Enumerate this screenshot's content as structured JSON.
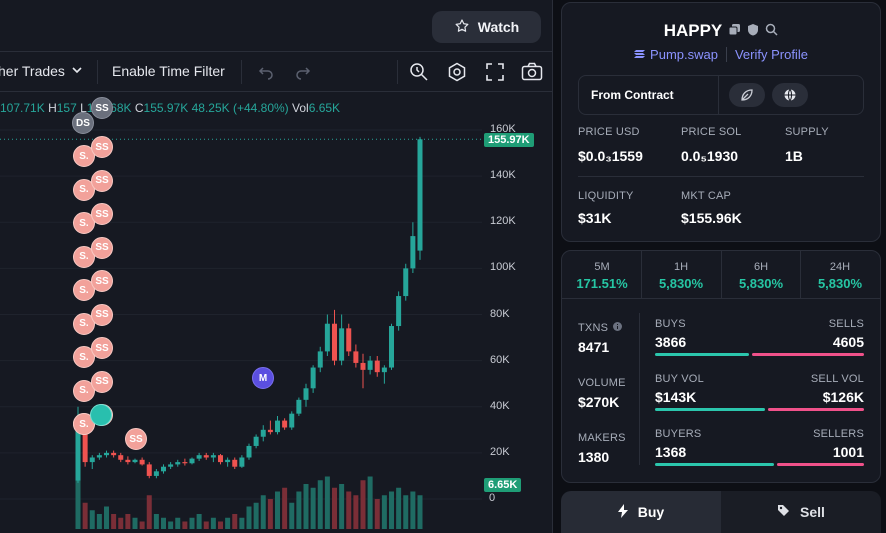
{
  "chart_panel": {
    "watch_label": "Watch",
    "toolbar": {
      "trades_label": "her Trades",
      "time_filter_label": "Enable Time Filter"
    },
    "ohlc": {
      "o_val": "107.71K",
      "h_key": "H",
      "h_val": "157",
      "l_key": "L",
      "l_val": "103.68K",
      "c_key": "C",
      "c_val": "155.97K",
      "change": "48.25K (+44.80%)",
      "vol_key": "Vol",
      "vol_val": "6.65K"
    },
    "last_price_tag": "155.97K",
    "volume_tag": "6.65K",
    "markers": {
      "dev_sell": "SS",
      "dev_short": "S.",
      "dev_buy": "DS",
      "migration": "M"
    }
  },
  "chart_data": {
    "type": "candlestick",
    "y_ticks": [
      "160K",
      "140K",
      "120K",
      "100K",
      "80K",
      "60K",
      "40K",
      "20K",
      "0"
    ],
    "ylim": [
      0,
      160000
    ],
    "candles": [
      {
        "o": 8000,
        "h": 40000,
        "l": 7000,
        "c": 30000
      },
      {
        "o": 30000,
        "h": 32000,
        "l": 14000,
        "c": 16000
      },
      {
        "o": 16000,
        "h": 19000,
        "l": 13000,
        "c": 18000
      },
      {
        "o": 18000,
        "h": 20000,
        "l": 17000,
        "c": 19000
      },
      {
        "o": 19000,
        "h": 21000,
        "l": 18000,
        "c": 20000
      },
      {
        "o": 20000,
        "h": 21000,
        "l": 18000,
        "c": 19000
      },
      {
        "o": 19000,
        "h": 20000,
        "l": 16000,
        "c": 17000
      },
      {
        "o": 17000,
        "h": 18500,
        "l": 15000,
        "c": 16000
      },
      {
        "o": 16000,
        "h": 17500,
        "l": 15500,
        "c": 17000
      },
      {
        "o": 17000,
        "h": 18000,
        "l": 14500,
        "c": 15000
      },
      {
        "o": 15000,
        "h": 16000,
        "l": 9000,
        "c": 10000
      },
      {
        "o": 10000,
        "h": 13000,
        "l": 9000,
        "c": 12000
      },
      {
        "o": 12000,
        "h": 15000,
        "l": 11000,
        "c": 14000
      },
      {
        "o": 14000,
        "h": 16000,
        "l": 13000,
        "c": 15000
      },
      {
        "o": 15000,
        "h": 17000,
        "l": 14000,
        "c": 16000
      },
      {
        "o": 16000,
        "h": 17500,
        "l": 14500,
        "c": 15500
      },
      {
        "o": 15500,
        "h": 18000,
        "l": 15000,
        "c": 17500
      },
      {
        "o": 17500,
        "h": 20000,
        "l": 16500,
        "c": 19000
      },
      {
        "o": 19000,
        "h": 20000,
        "l": 17000,
        "c": 18000
      },
      {
        "o": 18000,
        "h": 20000,
        "l": 16000,
        "c": 19000
      },
      {
        "o": 19000,
        "h": 19500,
        "l": 15000,
        "c": 16000
      },
      {
        "o": 16000,
        "h": 18000,
        "l": 14000,
        "c": 17000
      },
      {
        "o": 17000,
        "h": 18000,
        "l": 13000,
        "c": 14000
      },
      {
        "o": 14000,
        "h": 19000,
        "l": 13500,
        "c": 18000
      },
      {
        "o": 18000,
        "h": 24000,
        "l": 17000,
        "c": 23000
      },
      {
        "o": 23000,
        "h": 28000,
        "l": 22000,
        "c": 27000
      },
      {
        "o": 27000,
        "h": 32000,
        "l": 25000,
        "c": 30000
      },
      {
        "o": 30000,
        "h": 34000,
        "l": 28000,
        "c": 29000
      },
      {
        "o": 29000,
        "h": 36000,
        "l": 28000,
        "c": 34000
      },
      {
        "o": 34000,
        "h": 35000,
        "l": 30000,
        "c": 31000
      },
      {
        "o": 31000,
        "h": 38000,
        "l": 30000,
        "c": 37000
      },
      {
        "o": 37000,
        "h": 44000,
        "l": 36000,
        "c": 43000
      },
      {
        "o": 43000,
        "h": 50000,
        "l": 40000,
        "c": 48000
      },
      {
        "o": 48000,
        "h": 58000,
        "l": 46000,
        "c": 57000
      },
      {
        "o": 57000,
        "h": 66000,
        "l": 55000,
        "c": 64000
      },
      {
        "o": 64000,
        "h": 80000,
        "l": 62000,
        "c": 76000
      },
      {
        "o": 76000,
        "h": 82000,
        "l": 58000,
        "c": 60000
      },
      {
        "o": 60000,
        "h": 80000,
        "l": 58000,
        "c": 74000
      },
      {
        "o": 74000,
        "h": 76000,
        "l": 62000,
        "c": 64000
      },
      {
        "o": 64000,
        "h": 67000,
        "l": 57000,
        "c": 59000
      },
      {
        "o": 59000,
        "h": 63000,
        "l": 48000,
        "c": 56000
      },
      {
        "o": 56000,
        "h": 62000,
        "l": 54000,
        "c": 60000
      },
      {
        "o": 60000,
        "h": 62000,
        "l": 53000,
        "c": 55000
      },
      {
        "o": 55000,
        "h": 58000,
        "l": 50000,
        "c": 57000
      },
      {
        "o": 57000,
        "h": 76000,
        "l": 56000,
        "c": 75000
      },
      {
        "o": 75000,
        "h": 90000,
        "l": 73000,
        "c": 88000
      },
      {
        "o": 88000,
        "h": 102000,
        "l": 86000,
        "c": 100000
      },
      {
        "o": 100000,
        "h": 120000,
        "l": 98000,
        "c": 114000
      },
      {
        "o": 107710,
        "h": 157000,
        "l": 103680,
        "c": 155970
      }
    ],
    "volume_relative": [
      0.95,
      0.35,
      0.25,
      0.2,
      0.3,
      0.2,
      0.15,
      0.2,
      0.15,
      0.1,
      0.45,
      0.2,
      0.15,
      0.1,
      0.15,
      0.1,
      0.15,
      0.2,
      0.1,
      0.15,
      0.1,
      0.15,
      0.2,
      0.15,
      0.3,
      0.35,
      0.45,
      0.4,
      0.5,
      0.55,
      0.35,
      0.5,
      0.6,
      0.55,
      0.65,
      0.7,
      0.55,
      0.6,
      0.5,
      0.45,
      0.65,
      0.7,
      0.4,
      0.45,
      0.5,
      0.55,
      0.45,
      0.5,
      0.45
    ]
  },
  "token": {
    "name": "HAPPY",
    "source": "Pump.swap",
    "verify_label": "Verify Profile",
    "from_contract_label": "From Contract",
    "stats": [
      {
        "label": "PRICE USD",
        "value": "$0.0₃1559"
      },
      {
        "label": "PRICE SOL",
        "value": "0.0₅1930"
      },
      {
        "label": "SUPPLY",
        "value": "1B"
      },
      {
        "label": "LIQUIDITY",
        "value": "$31K"
      },
      {
        "label": "MKT CAP",
        "value": "$155.96K"
      }
    ]
  },
  "timeframes": [
    {
      "label": "5M",
      "value": "171.51%"
    },
    {
      "label": "1H",
      "value": "5,830%"
    },
    {
      "label": "6H",
      "value": "5,830%"
    },
    {
      "label": "24H",
      "value": "5,830%"
    }
  ],
  "activity": {
    "txns_label": "TXNS",
    "txns_value": "8471",
    "volume_label": "VOLUME",
    "volume_value": "$270K",
    "makers_label": "MAKERS",
    "makers_value": "1380",
    "buys_label": "BUYS",
    "buys_value": "3866",
    "sells_label": "SELLS",
    "sells_value": "4605",
    "buy_vol_label": "BUY VOL",
    "buy_vol_value": "$143K",
    "sell_vol_label": "SELL VOL",
    "sell_vol_value": "$126K",
    "buyers_label": "BUYERS",
    "buyers_value": "1368",
    "sellers_label": "SELLERS",
    "sellers_value": "1001",
    "buy_share_txns": 0.456,
    "buy_share_vol": 0.532,
    "buy_share_buyers": 0.577
  },
  "trade_tabs": {
    "buy_label": "Buy",
    "sell_label": "Sell"
  },
  "colors": {
    "up": "#26a69a",
    "down": "#ef5350",
    "accent_green": "#26c6a4",
    "accent_pink": "#f0518a",
    "link": "#8b93ff"
  }
}
